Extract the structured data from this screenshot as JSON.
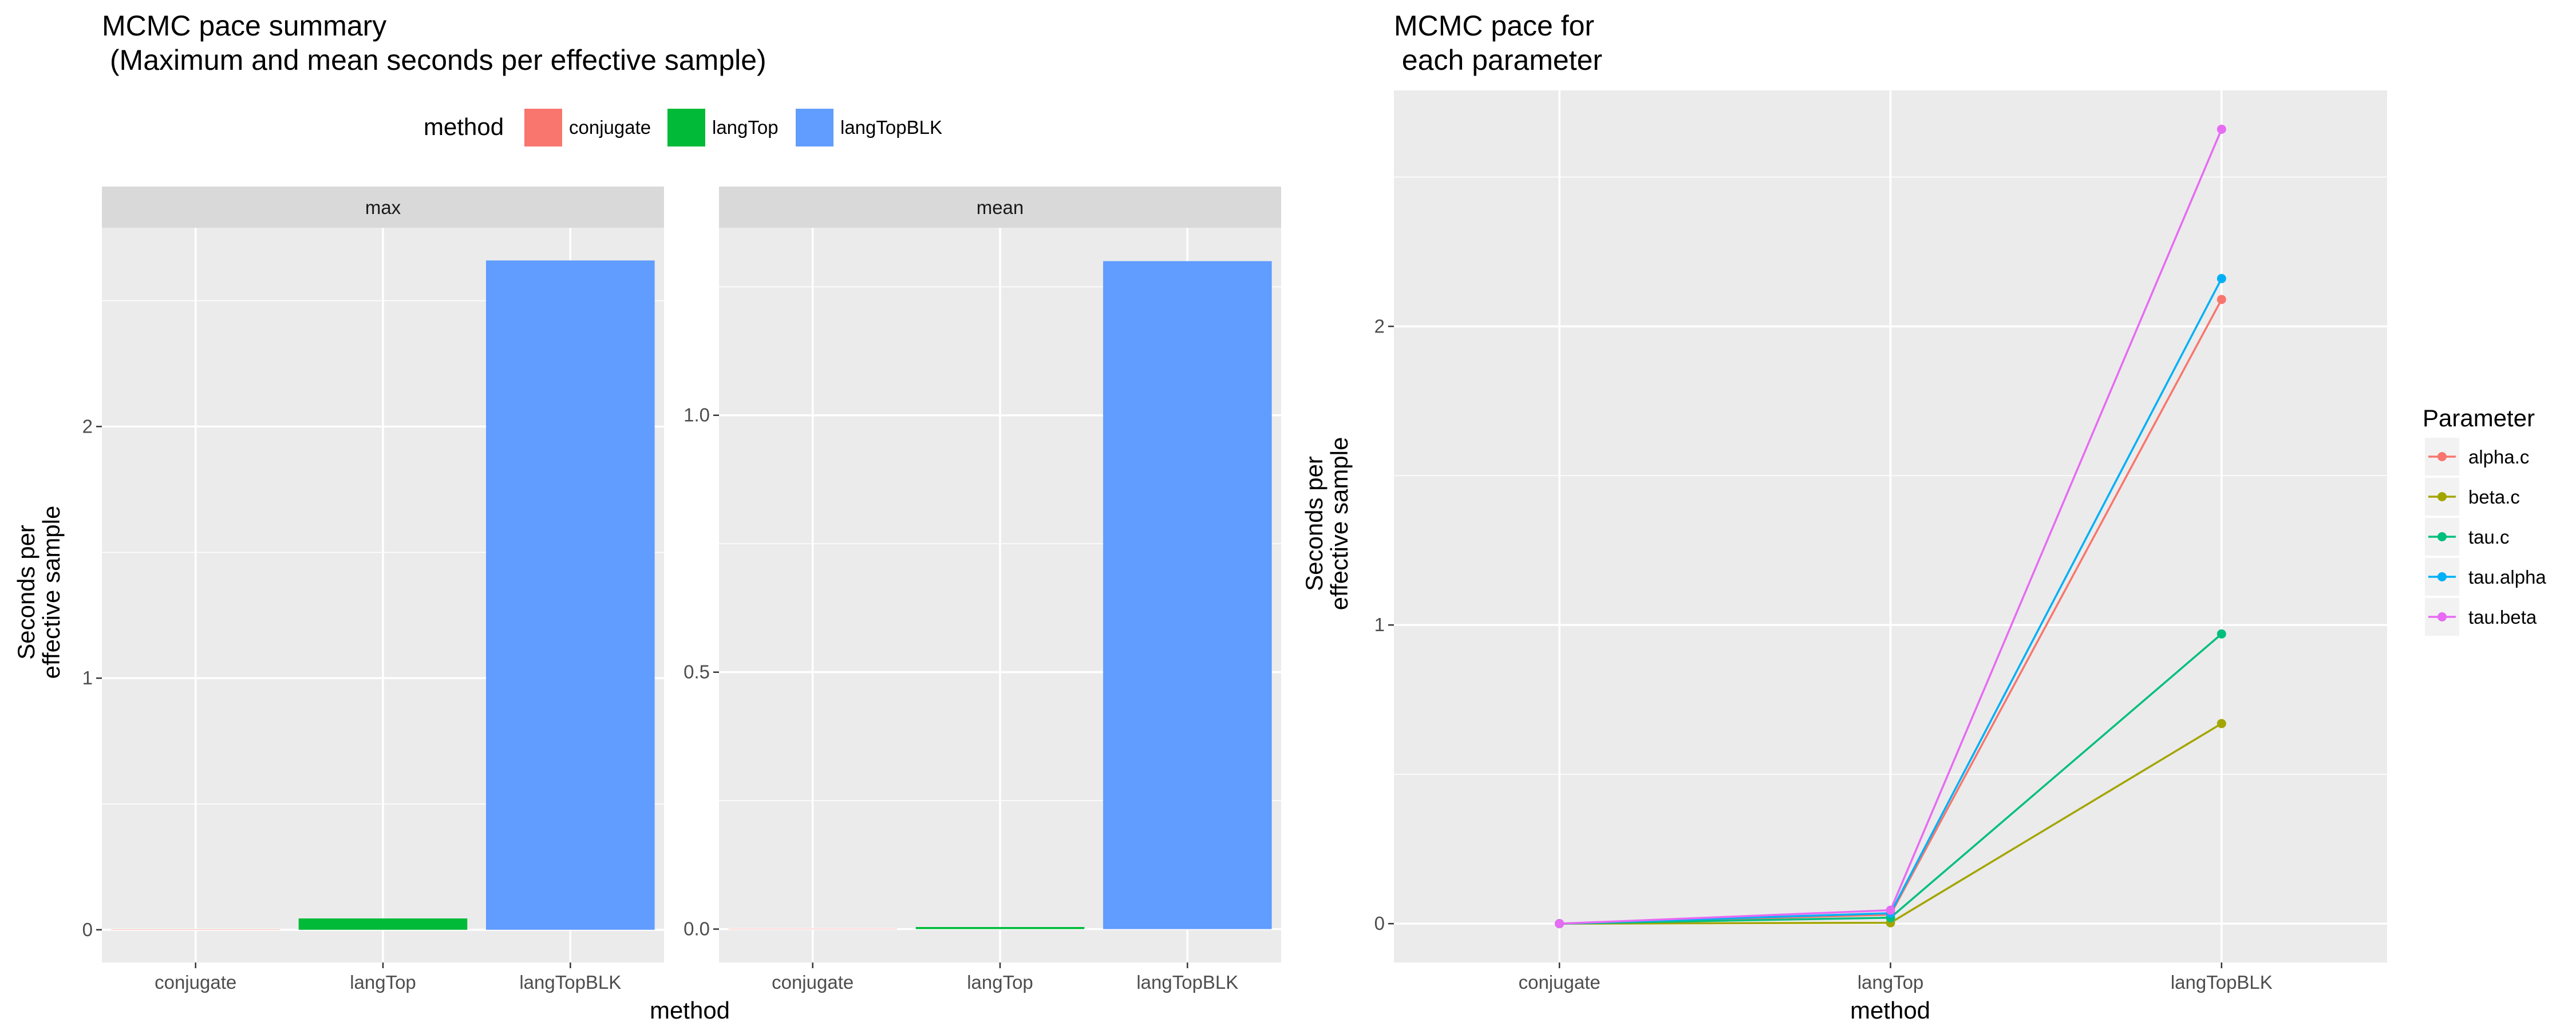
{
  "chart_data": [
    {
      "type": "bar",
      "title_lines": [
        "MCMC pace summary",
        " (Maximum and mean seconds per effective sample)"
      ],
      "xlabel": "method",
      "ylabel_lines": [
        "Seconds per",
        "effective sample"
      ],
      "legend": {
        "title": "method",
        "position": "top",
        "entries": [
          {
            "label": "conjugate",
            "color": "#F8766D"
          },
          {
            "label": "langTop",
            "color": "#00BA38"
          },
          {
            "label": "langTopBLK",
            "color": "#619CFF"
          }
        ]
      },
      "categories": [
        "conjugate",
        "langTop",
        "langTopBLK"
      ],
      "grid": true,
      "facets": [
        {
          "strip": "max",
          "values": [
            0.0005,
            0.045,
            2.66
          ],
          "ylim": [
            -0.13,
            2.79
          ],
          "yticks": [
            0,
            1,
            2
          ],
          "ytick_labels": [
            "0",
            "1",
            "2"
          ]
        },
        {
          "strip": "mean",
          "values": [
            0.0002,
            0.004,
            1.3
          ],
          "ylim": [
            -0.065,
            1.365
          ],
          "yticks": [
            0.0,
            0.5,
            1.0
          ],
          "ytick_labels": [
            "0.0",
            "0.5",
            "1.0"
          ]
        }
      ]
    },
    {
      "type": "line",
      "title_lines": [
        "MCMC pace for",
        " each parameter"
      ],
      "xlabel": "method",
      "ylabel_lines": [
        "Seconds per",
        "effective sample"
      ],
      "categories": [
        "conjugate",
        "langTop",
        "langTopBLK"
      ],
      "ylim": [
        -0.13,
        2.79
      ],
      "yticks": [
        0,
        1,
        2
      ],
      "ytick_labels": [
        "0",
        "1",
        "2"
      ],
      "grid": true,
      "legend": {
        "title": "Parameter",
        "position": "right"
      },
      "series": [
        {
          "name": "alpha.c",
          "color": "#F8766D",
          "values": [
            0.0,
            0.03,
            2.09
          ]
        },
        {
          "name": "beta.c",
          "color": "#A3A500",
          "values": [
            0.0,
            0.003,
            0.67
          ]
        },
        {
          "name": "tau.c",
          "color": "#00BF7D",
          "values": [
            0.0,
            0.02,
            0.97
          ]
        },
        {
          "name": "tau.alpha",
          "color": "#00B0F6",
          "values": [
            0.0,
            0.035,
            2.16
          ]
        },
        {
          "name": "tau.beta",
          "color": "#E76BF3",
          "values": [
            0.0,
            0.045,
            2.66
          ]
        }
      ]
    }
  ]
}
